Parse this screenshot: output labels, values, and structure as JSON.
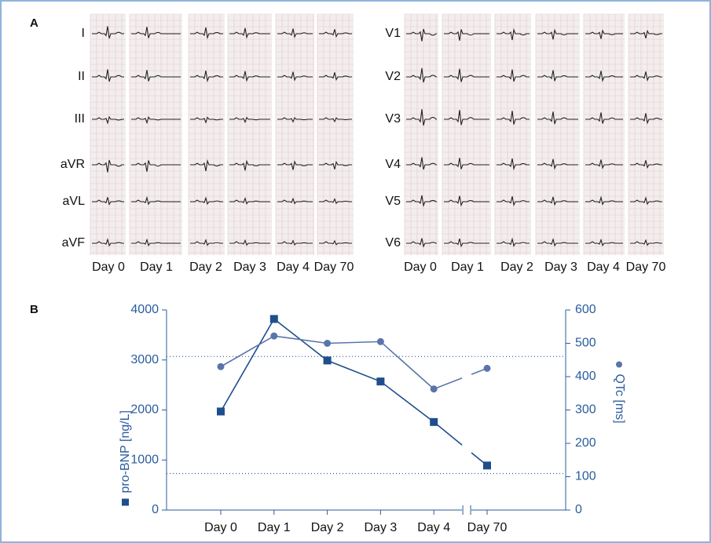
{
  "panel_a": {
    "label": "A",
    "limb_leads": [
      "I",
      "II",
      "III",
      "aVR",
      "aVL",
      "aVF"
    ],
    "chest_leads": [
      "V1",
      "V2",
      "V3",
      "V4",
      "V5",
      "V6"
    ],
    "days": [
      "Day 0",
      "Day 1",
      "Day 2",
      "Day 3",
      "Day 4",
      "Day 70"
    ]
  },
  "chart_data": {
    "type": "line",
    "panel_label": "B",
    "categories": [
      "Day 0",
      "Day 1",
      "Day 2",
      "Day 3",
      "Day 4",
      "Day 70"
    ],
    "series": [
      {
        "name": "pro-BNP [ng/L]",
        "color": "#1f4e8c",
        "marker": "square",
        "values": [
          1970,
          3820,
          2990,
          2570,
          1760,
          890
        ]
      },
      {
        "name": "QTc [ms]",
        "color": "#5a74ab",
        "marker": "circle",
        "axis": "y2",
        "values": [
          430,
          522,
          500,
          505,
          363,
          425
        ]
      }
    ],
    "ylim": [
      0,
      4000
    ],
    "yticks": [
      0,
      1000,
      2000,
      3000,
      4000
    ],
    "y2lim": [
      0,
      600
    ],
    "y2ticks": [
      0,
      100,
      200,
      300,
      400,
      500,
      600
    ],
    "reference_lines": [
      3070,
      730
    ],
    "axis_break": true
  }
}
